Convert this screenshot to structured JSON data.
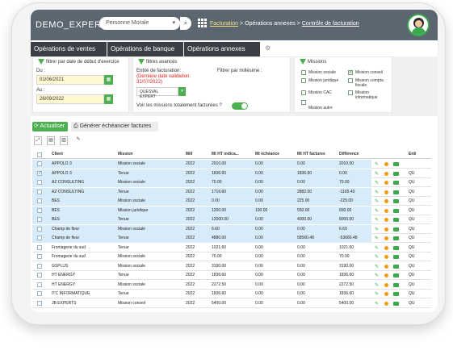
{
  "app": {
    "brand": "DEMO_EXPERT",
    "entity_type": "Personne Morale"
  },
  "breadcrumb": {
    "part1": "Facturation",
    "sep1": ">",
    "part2": "Opérations annexes",
    "sep2": ">",
    "part3": "Contrôle de facturation"
  },
  "menu": [
    "Opérations de ventes",
    "Opérations de banque",
    "Opérations annexes"
  ],
  "filters": {
    "period": {
      "title": "filtrer par date de début d'exercice",
      "from_label": "Du :",
      "from_value": "01/06/2021",
      "to_label": "Au :",
      "to_value": "26/09/2022"
    },
    "advanced": {
      "title": "filtres avancés",
      "invoicing_label": "Entité de facturation:",
      "last_validation": "(Dernière date validation: 31/07/2022)",
      "entity_value": "QUESVAL EXPERT",
      "millesime_label": "Filtrer par millésime :",
      "toggle_label": "Voir les missions totalement facturées ?"
    },
    "missions": {
      "title": "Missions",
      "items": [
        {
          "label": "Mission sociale",
          "checked": false
        },
        {
          "label": "Mission conseil",
          "checked": true
        },
        {
          "label": "Mission juridique",
          "checked": false
        },
        {
          "label": "Mission compta fiscale",
          "checked": false
        },
        {
          "label": "Mission CAC",
          "checked": false
        },
        {
          "label": "Mission informatique",
          "checked": false
        },
        {
          "label": "Mission autre",
          "checked": false
        }
      ]
    }
  },
  "toolbar": {
    "refresh": "Actualiser",
    "generate": "Générer échéancier factures"
  },
  "table": {
    "headers": [
      "Client",
      "Mission",
      "Mill",
      "Mt HT indica...",
      "Mt échéance",
      "Mt HT factures",
      "Différence",
      "Enti"
    ],
    "rows": [
      {
        "client": "APPOLO 3",
        "mission": "Mission sociale",
        "mill": "2022",
        "ht_ind": "2010.00",
        "echeance": "0.00",
        "ht_fact": "0.00",
        "diff": "2010.00",
        "enti": "",
        "selected": true,
        "checked": false
      },
      {
        "client": "APPOLO 3",
        "mission": "Tenue",
        "mill": "2022",
        "ht_ind": "1836.60",
        "echeance": "0.00",
        "ht_fact": "1836.60",
        "diff": "0.00",
        "enti": "QU",
        "selected": true,
        "checked": true
      },
      {
        "client": "AZ CONSULTING",
        "mission": "Mission sociale",
        "mill": "2022",
        "ht_ind": "70.00",
        "echeance": "0.00",
        "ht_fact": "0.00",
        "diff": "70.00",
        "enti": "QU",
        "selected": true,
        "checked": false
      },
      {
        "client": "AZ CONSULTING",
        "mission": "Tenue",
        "mill": "2022",
        "ht_ind": "1716.60",
        "echeance": "0.00",
        "ht_fact": "2882.00",
        "diff": "-1165.40",
        "enti": "QU",
        "selected": true,
        "checked": false
      },
      {
        "client": "BES",
        "mission": "Mission sociale",
        "mill": "2022",
        "ht_ind": "0.00",
        "echeance": "0.00",
        "ht_fact": "225.00",
        "diff": "-225.00",
        "enti": "QU",
        "selected": true,
        "checked": false
      },
      {
        "client": "BES",
        "mission": "Mission juridique",
        "mill": "2022",
        "ht_ind": "1200.00",
        "echeance": "100.00",
        "ht_fact": "550.00",
        "diff": "650.00",
        "enti": "QU",
        "selected": true,
        "checked": false
      },
      {
        "client": "BES",
        "mission": "Tenue",
        "mill": "2022",
        "ht_ind": "12000.00",
        "echeance": "0.00",
        "ht_fact": "4000.00",
        "diff": "8000.00",
        "enti": "QU",
        "selected": true,
        "checked": false
      },
      {
        "client": "Champ de fleur",
        "mission": "Mission sociale",
        "mill": "2022",
        "ht_ind": "6.60",
        "echeance": "0.00",
        "ht_fact": "0.00",
        "diff": "6.60",
        "enti": "QU",
        "selected": true,
        "checked": false
      },
      {
        "client": "Champ de fleur",
        "mission": "Tenue",
        "mill": "2022",
        "ht_ind": "4880.00",
        "echeance": "0.00",
        "ht_fact": "58560.48",
        "diff": "-53680.48",
        "enti": "QU",
        "selected": true,
        "checked": false
      },
      {
        "client": "Fromagerie du sud",
        "mission": "Tenue",
        "mill": "2022",
        "ht_ind": "1021.60",
        "echeance": "0.00",
        "ht_fact": "0.00",
        "diff": "1021.60",
        "enti": "QU",
        "selected": false,
        "checked": false
      },
      {
        "client": "Fromagerie du sud",
        "mission": "Mission sociale",
        "mill": "2022",
        "ht_ind": "70.00",
        "echeance": "0.00",
        "ht_fact": "0.00",
        "diff": "70.00",
        "enti": "QU",
        "selected": false,
        "checked": false
      },
      {
        "client": "GSPLUS",
        "mission": "Mission sociale",
        "mill": "2022",
        "ht_ind": "3190.00",
        "echeance": "0.00",
        "ht_fact": "0.00",
        "diff": "3190.00",
        "enti": "QU",
        "selected": false,
        "checked": false
      },
      {
        "client": "HT ENERGY",
        "mission": "Tenue",
        "mill": "2022",
        "ht_ind": "1836.60",
        "echeance": "0.00",
        "ht_fact": "0.00",
        "diff": "1836.60",
        "enti": "QU",
        "selected": false,
        "checked": false
      },
      {
        "client": "HT ENERGY",
        "mission": "Mission sociale",
        "mill": "2022",
        "ht_ind": "2272.50",
        "echeance": "0.00",
        "ht_fact": "0.00",
        "diff": "2272.50",
        "enti": "QU",
        "selected": false,
        "checked": false
      },
      {
        "client": "ITC INFORMATIQUE",
        "mission": "Tenue",
        "mill": "2022",
        "ht_ind": "1836.60",
        "echeance": "0.00",
        "ht_fact": "0.00",
        "diff": "1836.60",
        "enti": "QU",
        "selected": false,
        "checked": false
      },
      {
        "client": "JB EXPERTS",
        "mission": "Mission conseil",
        "mill": "2022",
        "ht_ind": "5400.00",
        "echeance": "0.00",
        "ht_fact": "0.00",
        "diff": "5400.00",
        "enti": "QU",
        "selected": false,
        "checked": false
      }
    ]
  },
  "colors": {
    "topbar": "#5c6670",
    "menu": "#3a3f45",
    "accent": "#4caf50",
    "selected_row": "#d8ebf8",
    "warning": "#e02020",
    "orange": "#f39c12"
  },
  "icons": {
    "search": "search-icon",
    "apps": "grid-icon",
    "refresh": "refresh-icon",
    "print": "print-icon",
    "expand": "expand-icon",
    "pdf": "file-pdf-icon",
    "excel": "file-excel-icon",
    "settings": "wrench-icon",
    "edit": "edit-icon",
    "status": "status-dot-icon",
    "open": "open-icon"
  }
}
